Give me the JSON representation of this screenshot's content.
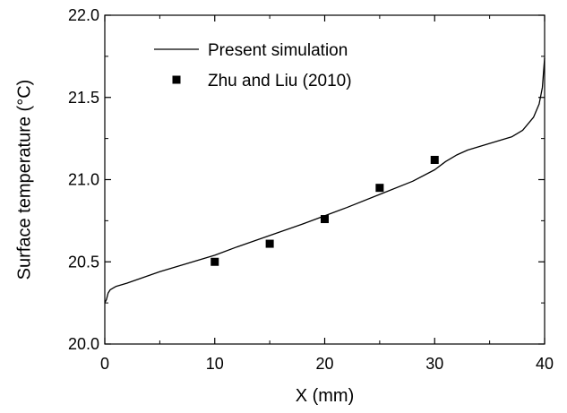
{
  "chart_data": {
    "type": "line",
    "title": "",
    "xlabel": "X (mm)",
    "ylabel": "Surface temperature (°C)",
    "xlim": [
      0,
      40
    ],
    "ylim": [
      20.0,
      22.0
    ],
    "x_ticks": [
      0,
      10,
      20,
      30,
      40
    ],
    "x_tick_labels": [
      "0",
      "10",
      "20",
      "30",
      "40"
    ],
    "x_minor_ticks": [
      5,
      15,
      25,
      35
    ],
    "y_ticks": [
      20.0,
      20.5,
      21.0,
      21.5,
      22.0
    ],
    "y_tick_labels": [
      "20.0",
      "20.5",
      "21.0",
      "21.5",
      "22.0"
    ],
    "y_minor_ticks": [
      20.25,
      20.75,
      21.25,
      21.75
    ],
    "grid": false,
    "legend_position": "top-left",
    "series": [
      {
        "name": "Present simulation",
        "kind": "line",
        "color": "#000000",
        "x": [
          0,
          0.15,
          0.3,
          0.5,
          1,
          2,
          5,
          8,
          10,
          12,
          15,
          18,
          20,
          22,
          25,
          28,
          30,
          31,
          32,
          33,
          35,
          37,
          38,
          39,
          39.5,
          39.8,
          40
        ],
        "y": [
          20.25,
          20.27,
          20.31,
          20.33,
          20.35,
          20.37,
          20.44,
          20.5,
          20.54,
          20.59,
          20.66,
          20.73,
          20.78,
          20.83,
          20.91,
          20.99,
          21.06,
          21.11,
          21.15,
          21.18,
          21.22,
          21.26,
          21.3,
          21.38,
          21.46,
          21.56,
          21.74
        ]
      },
      {
        "name": "Zhu and Liu (2010)",
        "kind": "scatter",
        "marker": "square",
        "color": "#000000",
        "x": [
          10,
          15,
          20,
          25,
          30
        ],
        "y": [
          20.5,
          20.61,
          20.76,
          20.95,
          21.12
        ]
      }
    ]
  }
}
